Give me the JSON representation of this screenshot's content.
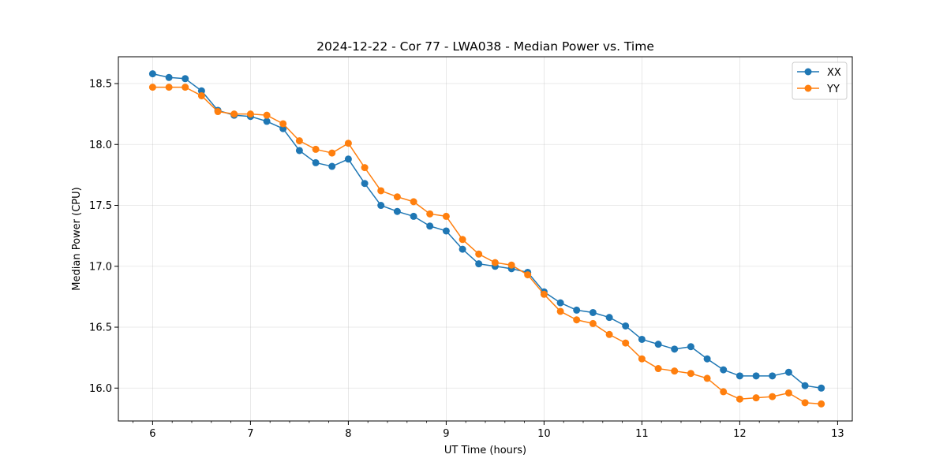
{
  "chart_data": {
    "type": "line",
    "title": "2024-12-22 - Cor 77 - LWA038 - Median Power vs. Time",
    "xlabel": "UT Time (hours)",
    "ylabel": "Median Power (CPU)",
    "xlim": [
      5.65,
      13.15
    ],
    "ylim": [
      15.73,
      18.72
    ],
    "xticks": [
      6,
      7,
      8,
      9,
      10,
      11,
      12,
      13
    ],
    "xtick_labels": [
      "6",
      "7",
      "8",
      "9",
      "10",
      "11",
      "12",
      "13"
    ],
    "yticks": [
      16.0,
      16.5,
      17.0,
      17.5,
      18.0,
      18.5
    ],
    "ytick_labels": [
      "16.0",
      "16.5",
      "17.0",
      "17.5",
      "18.0",
      "18.5"
    ],
    "grid": true,
    "legend_position": "top-right",
    "x": [
      6.0,
      6.167,
      6.333,
      6.5,
      6.667,
      6.833,
      7.0,
      7.167,
      7.333,
      7.5,
      7.667,
      7.833,
      8.0,
      8.167,
      8.333,
      8.5,
      8.667,
      8.833,
      9.0,
      9.167,
      9.333,
      9.5,
      9.667,
      9.833,
      10.0,
      10.167,
      10.333,
      10.5,
      10.667,
      10.833,
      11.0,
      11.167,
      11.333,
      11.5,
      11.667,
      11.833,
      12.0,
      12.167,
      12.333,
      12.5,
      12.667,
      12.833
    ],
    "series": [
      {
        "name": "XX",
        "color": "#1f77b4",
        "values": [
          18.58,
          18.55,
          18.54,
          18.44,
          18.28,
          18.24,
          18.23,
          18.19,
          18.13,
          17.95,
          17.85,
          17.82,
          17.88,
          17.68,
          17.5,
          17.45,
          17.41,
          17.33,
          17.29,
          17.14,
          17.02,
          17.0,
          16.98,
          16.95,
          16.79,
          16.7,
          16.64,
          16.62,
          16.58,
          16.51,
          16.4,
          16.36,
          16.32,
          16.34,
          16.24,
          16.15,
          16.1,
          16.1,
          16.1,
          16.13,
          16.02,
          16.0
        ]
      },
      {
        "name": "YY",
        "color": "#ff7f0e",
        "values": [
          18.47,
          18.47,
          18.47,
          18.4,
          18.27,
          18.25,
          18.25,
          18.24,
          18.17,
          18.03,
          17.96,
          17.93,
          18.01,
          17.81,
          17.62,
          17.57,
          17.53,
          17.43,
          17.41,
          17.22,
          17.1,
          17.03,
          17.01,
          16.93,
          16.77,
          16.63,
          16.56,
          16.53,
          16.44,
          16.37,
          16.24,
          16.16,
          16.14,
          16.12,
          16.08,
          15.97,
          15.91,
          15.92,
          15.93,
          15.96,
          15.88,
          15.87
        ]
      }
    ]
  }
}
